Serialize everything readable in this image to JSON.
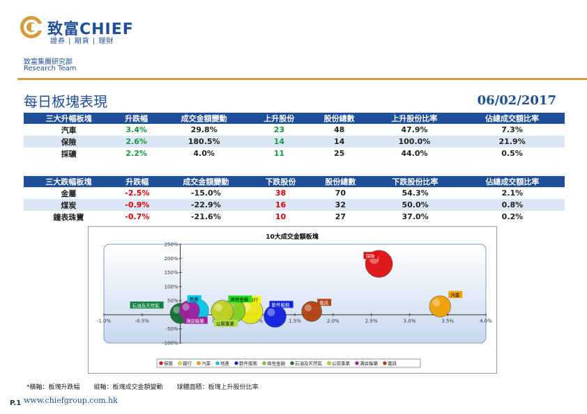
{
  "header": {
    "brand_cn": "致富CHIEF",
    "brand_sub": "證券 | 期貨 | 理財",
    "dept_cn": "致富集團研究部",
    "dept_en": "Research Team"
  },
  "page": {
    "title": "每日板塊表現",
    "date": "06/02/2017"
  },
  "gainers": {
    "headers": [
      "三大升幅板塊",
      "升跌幅",
      "成交金額變動",
      "上升股份",
      "股份總數",
      "上升股份比率",
      "佔總成交額比率"
    ],
    "rows": [
      [
        "汽車",
        "3.4%",
        "29.8%",
        "23",
        "48",
        "47.9%",
        "7.3%"
      ],
      [
        "保險",
        "2.6%",
        "180.5%",
        "14",
        "14",
        "100.0%",
        "21.9%"
      ],
      [
        "採礦",
        "2.2%",
        "4.0%",
        "11",
        "25",
        "44.0%",
        "0.5%"
      ]
    ]
  },
  "losers": {
    "headers": [
      "三大跌幅板塊",
      "升跌幅",
      "成交金額變動",
      "下跌股份",
      "股份總數",
      "下跌股份比率",
      "佔總成交額比率"
    ],
    "rows": [
      [
        "金屬",
        "-2.5%",
        "-15.0%",
        "38",
        "70",
        "54.3%",
        "2.1%"
      ],
      [
        "煤炭",
        "-0.9%",
        "-22.9%",
        "16",
        "32",
        "50.0%",
        "0.8%"
      ],
      [
        "鐘表珠寶",
        "-0.7%",
        "-21.6%",
        "10",
        "27",
        "37.0%",
        "0.2%"
      ]
    ]
  },
  "colors": {
    "brand_blue": "#1f4e9b",
    "accent_orange": "#d79a3c",
    "up_green": "#139a3e",
    "down_red": "#e00000"
  },
  "chart_data": {
    "type": "scatter",
    "title": "10大成交金額板塊",
    "xlim": [
      -1.0,
      4.0
    ],
    "ylim": [
      -100,
      250
    ],
    "x_ticks": [
      "-1.0%",
      "-0.5%",
      "0.0%",
      "0.5%",
      "1.0%",
      "1.5%",
      "2.0%",
      "2.5%",
      "3.0%",
      "3.5%",
      "4.0%"
    ],
    "y_ticks": [
      "250%",
      "200%",
      "150%",
      "100%",
      "50%",
      "0%",
      "-50%",
      "-100%"
    ],
    "grid": false,
    "legend_position": "bottom",
    "series": [
      {
        "name": "保險",
        "x": 2.6,
        "y": 180.5,
        "size": 100,
        "color": "#e01010",
        "label_bg": "#e01010",
        "label_fg": "#ffffff"
      },
      {
        "name": "銀行",
        "x": 0.92,
        "y": 12,
        "size": 75,
        "color": "#e8e810",
        "label_bg": "#ffff00",
        "label_fg": "#000000"
      },
      {
        "name": "汽車",
        "x": 3.4,
        "y": 29.8,
        "size": 47.9,
        "color": "#f0a000",
        "label_bg": "#f0a000",
        "label_fg": "#000000"
      },
      {
        "name": "地產",
        "x": 0.22,
        "y": 15,
        "size": 60,
        "color": "#00c8e8",
        "label_bg": "#00c8e8",
        "label_fg": "#000000"
      },
      {
        "name": "軟件服務",
        "x": 1.24,
        "y": -5,
        "size": 55,
        "color": "#1020e0",
        "label_bg": "#1020e0",
        "label_fg": "#ffffff"
      },
      {
        "name": "其他金融",
        "x": 0.7,
        "y": 14,
        "size": 60,
        "color": "#80d020",
        "label_bg": "#20e020",
        "label_fg": "#000000"
      },
      {
        "name": "石油及天然氣",
        "x": 0.0,
        "y": 5,
        "size": 40,
        "color": "#107030",
        "label_bg": "#108040",
        "label_fg": "#ffffff"
      },
      {
        "name": "公用事業",
        "x": 0.55,
        "y": 12,
        "size": 55,
        "color": "#c0d020",
        "label_bg": "#b0e040",
        "label_fg": "#000000"
      },
      {
        "name": "酒店娛樂",
        "x": 0.12,
        "y": 15,
        "size": 40,
        "color": "#a020a0",
        "label_bg": "#a020a0",
        "label_fg": "#ffffff"
      },
      {
        "name": "電訊",
        "x": 1.72,
        "y": 12,
        "size": 40,
        "color": "#b04010",
        "label_bg": "#b04010",
        "label_fg": "#ffffff"
      }
    ]
  },
  "footnote": {
    "x_note": "*橫軸：板塊升跌幅",
    "y_note": "縱軸：板塊成交金額變動",
    "size_note": "球體面積：板塊上升股份比率"
  },
  "footer": {
    "page_no": "P.1",
    "url": "www.chiefgroup.com.hk"
  }
}
